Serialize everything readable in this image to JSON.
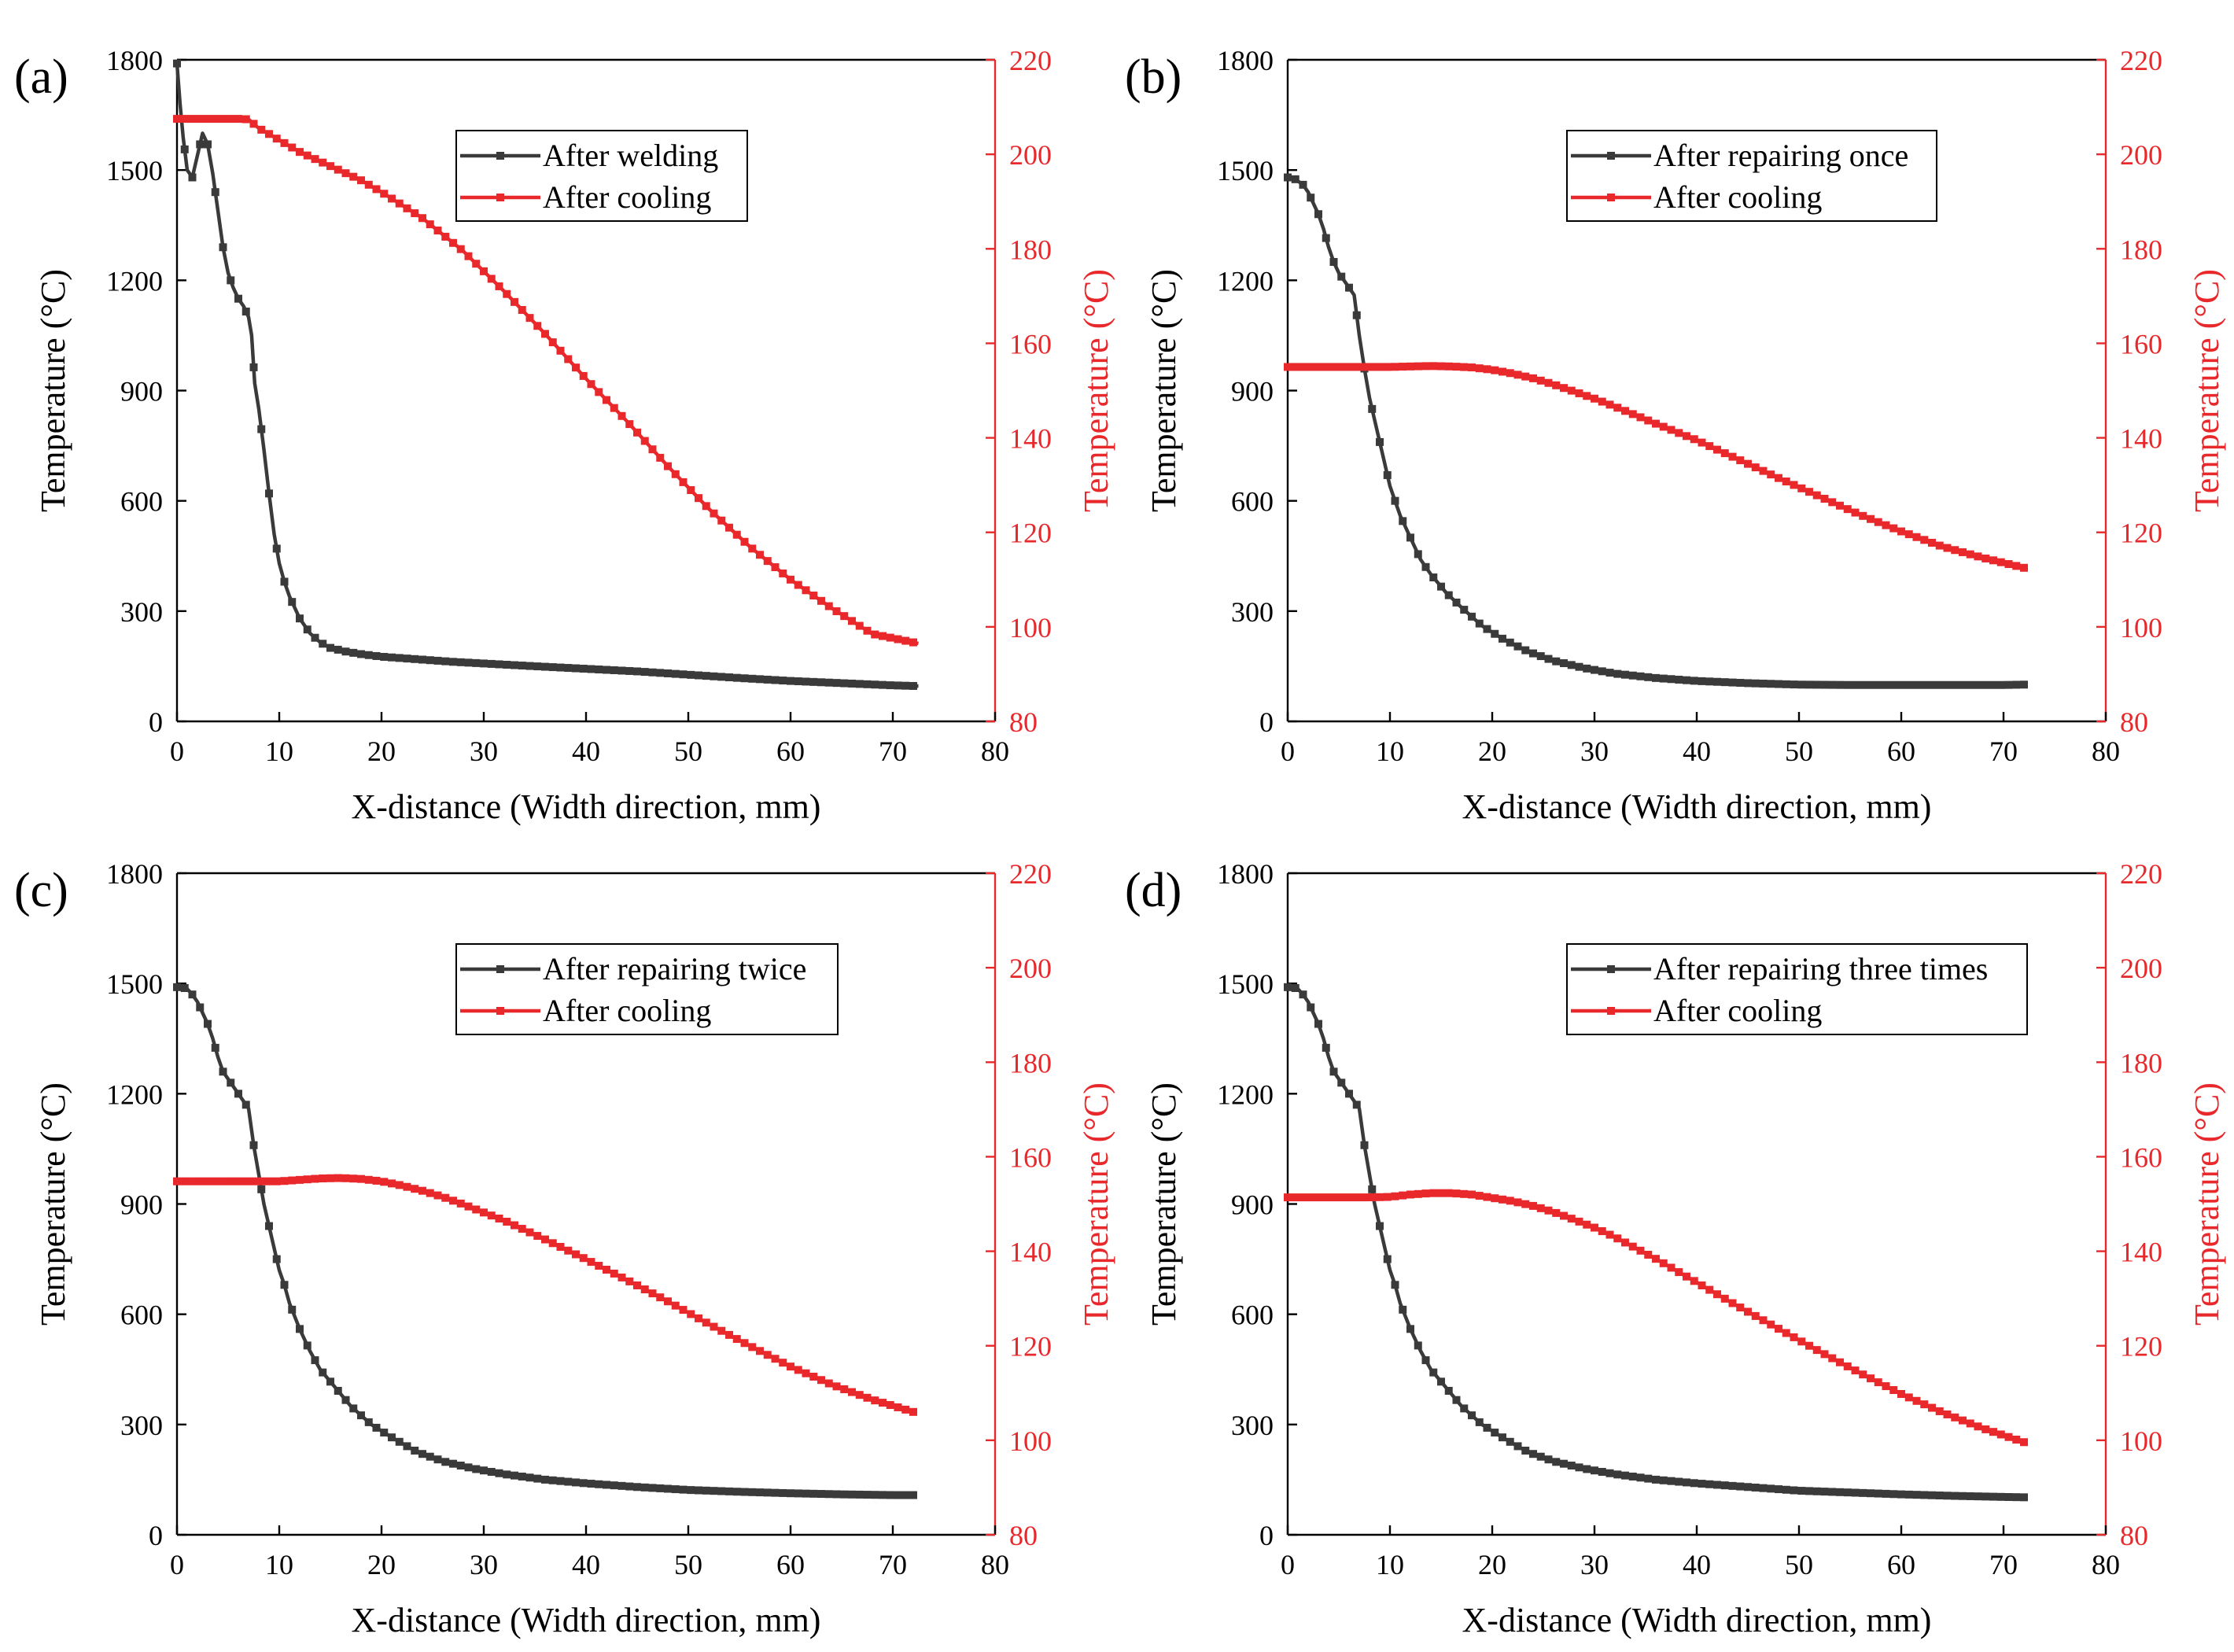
{
  "chart_data": [
    {
      "type": "line",
      "panel_label": "(a)",
      "xlabel": "X-distance (Width direction, mm)",
      "ylabel_left": "Temperature (°C)",
      "ylabel_right": "Temperature (°C)",
      "xlim": [
        0,
        80
      ],
      "ylim_left": [
        0,
        1800
      ],
      "ylim_right": [
        80,
        220
      ],
      "xticks": [
        0,
        10,
        20,
        30,
        40,
        50,
        60,
        70,
        80
      ],
      "yticks_left": [
        0,
        300,
        600,
        900,
        1200,
        1500,
        1800
      ],
      "yticks_right": [
        80,
        100,
        120,
        140,
        160,
        180,
        200,
        220
      ],
      "legend_position": "top-right",
      "series": [
        {
          "name": "After welding",
          "axis": "left",
          "color": "#3a3a3a",
          "x": [
            0,
            0.3,
            0.6,
            1.0,
            1.5,
            2.0,
            2.5,
            3.0,
            3.5,
            4.0,
            4.5,
            5.0,
            5.5,
            6.0,
            6.5,
            7.0,
            7.3,
            7.6,
            8.0,
            8.5,
            9.0,
            9.5,
            10.0,
            10.5,
            11.0,
            12.0,
            13.0,
            14.0,
            15.0,
            16.5,
            18.0,
            20.0,
            22.0,
            24.0,
            27.0,
            31.0,
            35.0,
            40.0,
            45.0,
            50.0,
            55.0,
            60.0,
            65.0,
            70.0,
            72.5
          ],
          "y": [
            1790,
            1680,
            1590,
            1500,
            1480,
            1540,
            1600,
            1570,
            1490,
            1390,
            1290,
            1220,
            1180,
            1150,
            1130,
            1100,
            1050,
            920,
            850,
            740,
            620,
            510,
            430,
            380,
            340,
            280,
            240,
            215,
            200,
            190,
            183,
            176,
            172,
            168,
            162,
            156,
            150,
            143,
            136,
            127,
            118,
            110,
            104,
            98,
            96
          ]
        },
        {
          "name": "After cooling",
          "axis": "right",
          "color": "#e8282b",
          "x": [
            0,
            1,
            2,
            3,
            4,
            5,
            6,
            7,
            8,
            9,
            10,
            12,
            15,
            18,
            20,
            24,
            28,
            32,
            36,
            40,
            44,
            48,
            52,
            56,
            60,
            64,
            68,
            72.5
          ],
          "y": [
            207.5,
            207.5,
            207.5,
            207.5,
            207.5,
            207.5,
            207.5,
            207.4,
            205.5,
            204.3,
            203.0,
            200.5,
            197.5,
            194.5,
            192.0,
            186.5,
            179.5,
            171.0,
            162.0,
            152.5,
            143.5,
            134.0,
            125.0,
            117.0,
            110.0,
            104.0,
            98.5,
            96.5
          ]
        }
      ]
    },
    {
      "type": "line",
      "panel_label": "(b)",
      "xlabel": "X-distance (Width direction, mm)",
      "ylabel_left": "Temperature (°C)",
      "ylabel_right": "Temperature (°C)",
      "xlim": [
        0,
        80
      ],
      "ylim_left": [
        0,
        1800
      ],
      "ylim_right": [
        80,
        220
      ],
      "xticks": [
        0,
        10,
        20,
        30,
        40,
        50,
        60,
        70,
        80
      ],
      "yticks_left": [
        0,
        300,
        600,
        900,
        1200,
        1500,
        1800
      ],
      "yticks_right": [
        80,
        100,
        120,
        140,
        160,
        180,
        200,
        220
      ],
      "legend_position": "top-right",
      "series": [
        {
          "name": "After repairing once",
          "axis": "left",
          "color": "#3a3a3a",
          "x": [
            0,
            0.5,
            1.0,
            1.5,
            2.0,
            2.5,
            3.0,
            3.5,
            4.0,
            4.5,
            5.0,
            5.5,
            6.0,
            6.5,
            7.0,
            7.5,
            8.0,
            8.5,
            9.0,
            9.5,
            10.0,
            10.5,
            11.0,
            12.0,
            13.0,
            14.0,
            15.5,
            17.0,
            19.0,
            21.0,
            23.5,
            26.0,
            29.0,
            32.0,
            36.0,
            40.0,
            45.0,
            50.0,
            55.0,
            60.0,
            65.0,
            70.0,
            72.0
          ],
          "y": [
            1480,
            1480,
            1470,
            1460,
            1440,
            1410,
            1380,
            1340,
            1290,
            1250,
            1220,
            1200,
            1180,
            1160,
            1050,
            960,
            880,
            820,
            760,
            700,
            640,
            600,
            560,
            500,
            440,
            400,
            350,
            310,
            260,
            225,
            190,
            165,
            145,
            130,
            118,
            110,
            104,
            100,
            99,
            99,
            99,
            99,
            100
          ]
        },
        {
          "name": "After cooling",
          "axis": "right",
          "color": "#e8282b",
          "x": [
            0,
            2,
            4,
            6,
            8,
            10,
            12,
            14,
            16,
            18,
            20,
            22,
            24,
            26,
            28,
            30,
            32,
            36,
            40,
            44,
            48,
            52,
            56,
            60,
            64,
            68,
            72
          ],
          "y": [
            155.0,
            155.0,
            155.0,
            155.0,
            155.0,
            155.0,
            155.1,
            155.2,
            155.1,
            154.9,
            154.4,
            153.6,
            152.6,
            151.3,
            149.8,
            148.3,
            146.6,
            143.0,
            139.5,
            135.5,
            131.5,
            127.6,
            123.7,
            120.2,
            117.0,
            114.6,
            112.5
          ]
        }
      ]
    },
    {
      "type": "line",
      "panel_label": "(c)",
      "xlabel": "X-distance (Width direction, mm)",
      "ylabel_left": "Temperature (°C)",
      "ylabel_right": "Temperature (°C)",
      "xlim": [
        0,
        80
      ],
      "ylim_left": [
        0,
        1800
      ],
      "ylim_right": [
        80,
        220
      ],
      "xticks": [
        0,
        10,
        20,
        30,
        40,
        50,
        60,
        70,
        80
      ],
      "yticks_left": [
        0,
        300,
        600,
        900,
        1200,
        1500,
        1800
      ],
      "yticks_right": [
        80,
        100,
        120,
        140,
        160,
        180,
        200,
        220
      ],
      "legend_position": "top-right",
      "series": [
        {
          "name": "After repairing twice",
          "axis": "left",
          "color": "#3a3a3a",
          "x": [
            0,
            0.5,
            1.0,
            1.5,
            2.0,
            2.5,
            3.0,
            3.5,
            4.0,
            4.5,
            5.0,
            5.5,
            6.0,
            6.5,
            7.0,
            7.5,
            8.0,
            8.5,
            9.0,
            9.5,
            10.0,
            10.5,
            11.0,
            12.0,
            13.0,
            14.0,
            15.5,
            17.0,
            19.0,
            21.0,
            23.5,
            26.0,
            29.0,
            32.0,
            36.0,
            40.0,
            45.0,
            50.0,
            55.0,
            60.0,
            65.0,
            70.0,
            72.0
          ],
          "y": [
            1490,
            1490,
            1485,
            1470,
            1450,
            1420,
            1390,
            1350,
            1300,
            1260,
            1240,
            1220,
            1200,
            1180,
            1160,
            1060,
            980,
            900,
            840,
            780,
            720,
            680,
            630,
            560,
            500,
            450,
            400,
            350,
            300,
            265,
            225,
            200,
            180,
            165,
            150,
            140,
            130,
            122,
            117,
            113,
            110,
            108,
            108
          ]
        },
        {
          "name": "After cooling",
          "axis": "right",
          "color": "#e8282b",
          "x": [
            0,
            2,
            4,
            6,
            8,
            10,
            12,
            14,
            16,
            18,
            20,
            22,
            24,
            26,
            28,
            30,
            32,
            36,
            40,
            44,
            48,
            52,
            56,
            60,
            64,
            68,
            72
          ],
          "y": [
            154.8,
            154.8,
            154.8,
            154.8,
            154.8,
            154.8,
            155.1,
            155.4,
            155.5,
            155.3,
            154.8,
            153.9,
            152.8,
            151.5,
            149.9,
            148.2,
            146.5,
            142.5,
            138.3,
            133.9,
            129.4,
            124.6,
            120.0,
            115.6,
            111.8,
            108.6,
            106.0
          ]
        }
      ]
    },
    {
      "type": "line",
      "panel_label": "(d)",
      "xlabel": "X-distance (Width direction, mm)",
      "ylabel_left": "Temperature (°C)",
      "ylabel_right": "Temperature (°C)",
      "xlim": [
        0,
        80
      ],
      "ylim_left": [
        0,
        1800
      ],
      "ylim_right": [
        80,
        220
      ],
      "xticks": [
        0,
        10,
        20,
        30,
        40,
        50,
        60,
        70,
        80
      ],
      "yticks_left": [
        0,
        300,
        600,
        900,
        1200,
        1500,
        1800
      ],
      "yticks_right": [
        80,
        100,
        120,
        140,
        160,
        180,
        200,
        220
      ],
      "legend_position": "top-right",
      "series": [
        {
          "name": "After repairing three times",
          "axis": "left",
          "color": "#3a3a3a",
          "x": [
            0,
            0.5,
            1.0,
            1.5,
            2.0,
            2.5,
            3.0,
            3.5,
            4.0,
            4.5,
            5.0,
            5.5,
            6.0,
            6.5,
            7.0,
            7.5,
            8.0,
            8.5,
            9.0,
            9.5,
            10.0,
            10.5,
            11.0,
            12.0,
            13.0,
            14.0,
            15.5,
            17.0,
            19.0,
            21.0,
            23.5,
            26.0,
            29.0,
            32.0,
            36.0,
            40.0,
            45.0,
            50.0,
            55.0,
            60.0,
            65.0,
            70.0,
            72.0
          ],
          "y": [
            1490,
            1490,
            1485,
            1470,
            1450,
            1420,
            1390,
            1350,
            1300,
            1260,
            1240,
            1220,
            1200,
            1180,
            1160,
            1060,
            980,
            900,
            840,
            780,
            720,
            680,
            630,
            560,
            500,
            450,
            400,
            350,
            300,
            265,
            225,
            200,
            180,
            165,
            150,
            140,
            130,
            120,
            115,
            110,
            106,
            103,
            102
          ]
        },
        {
          "name": "After cooling",
          "axis": "right",
          "color": "#e8282b",
          "x": [
            0,
            2,
            4,
            6,
            8,
            10,
            12,
            14,
            16,
            18,
            20,
            22,
            24,
            26,
            28,
            30,
            32,
            36,
            40,
            44,
            48,
            52,
            56,
            60,
            64,
            68,
            72
          ],
          "y": [
            151.4,
            151.4,
            151.4,
            151.4,
            151.4,
            151.5,
            152.0,
            152.3,
            152.3,
            152.0,
            151.3,
            150.6,
            149.6,
            148.3,
            146.7,
            145.0,
            143.0,
            138.4,
            133.4,
            128.4,
            123.6,
            118.8,
            114.2,
            109.8,
            105.9,
            102.5,
            99.6
          ]
        }
      ]
    }
  ]
}
